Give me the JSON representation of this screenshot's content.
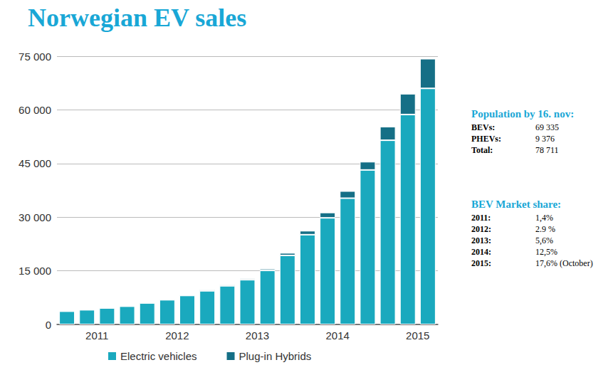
{
  "chart_data": {
    "type": "bar",
    "title": "Norwegian EV sales",
    "categories": [
      null,
      "2011",
      null,
      null,
      null,
      "2012",
      null,
      null,
      null,
      "2013",
      null,
      null,
      null,
      "2014",
      null,
      null,
      null,
      "2015",
      null
    ],
    "series": [
      {
        "name": "Electric vehicles",
        "color": "#1aa9be",
        "values": [
          3700,
          4100,
          4600,
          5100,
          6000,
          6900,
          8100,
          9400,
          10800,
          12500,
          15100,
          19300,
          25100,
          29800,
          35300,
          43200,
          51500,
          58700,
          66000
        ]
      },
      {
        "name": "Plug-in Hybrids",
        "color": "#156f86",
        "values": [
          100,
          100,
          100,
          100,
          100,
          100,
          200,
          300,
          300,
          400,
          500,
          700,
          1100,
          1500,
          2000,
          2300,
          3800,
          5800,
          8300
        ]
      }
    ],
    "stacked": true,
    "ylim": [
      0,
      75000
    ],
    "yticks": [
      0,
      {
        "value": 15000,
        "label": "15 000"
      },
      {
        "value": 30000,
        "label": "30 000"
      },
      {
        "value": 45000,
        "label": "45 000"
      },
      {
        "value": 60000,
        "label": "60 000"
      },
      {
        "value": 75000,
        "label": "75 000"
      }
    ],
    "grid": true,
    "legend": "bottom",
    "annotations": [
      {
        "heading": "Population by 16. nov:",
        "rows": [
          [
            "BEVs:",
            "69 335"
          ],
          [
            "PHEVs:",
            "9 376"
          ],
          [
            "Total:",
            "78 711"
          ]
        ]
      },
      {
        "heading": "BEV Market share:",
        "rows": [
          [
            "2011:",
            "1,4%"
          ],
          [
            "2012:",
            "2.9 %"
          ],
          [
            "2013:",
            "5,6%"
          ],
          [
            "2014:",
            "12,5%"
          ],
          [
            "2015:",
            "17,6% (October)"
          ]
        ]
      }
    ]
  }
}
